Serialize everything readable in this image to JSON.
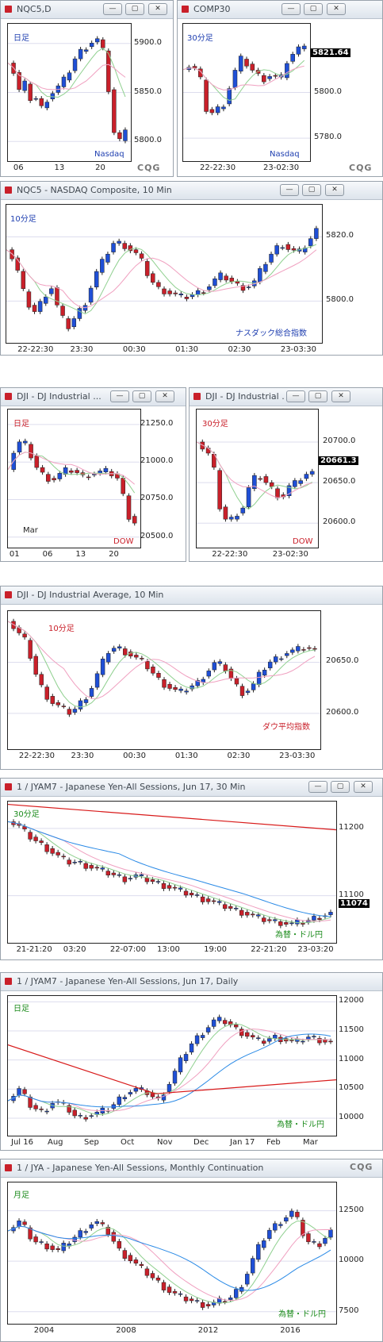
{
  "colors": {
    "up": "#1f4fd6",
    "down": "#c9202a",
    "grid": "#888888"
  },
  "panels": {
    "p1": {
      "title": "NQC5,D",
      "label": "日足",
      "sublabel": "Nasdaq",
      "yticks": [
        "5900.0",
        "5850.0",
        "5800.0"
      ],
      "xticks": [
        "06",
        "13",
        "20"
      ]
    },
    "p2": {
      "title": "COMP30",
      "label": "30分足",
      "sublabel": "Nasdaq",
      "last": "5821.64",
      "yticks": [
        "5800.0",
        "5780.0"
      ],
      "xticks": [
        "22-22:30",
        "23-02:30"
      ]
    },
    "p3": {
      "title": "NQC5 - NASDAQ Composite, 10 Min",
      "label": "10分足",
      "sublabel": "ナスダック総合指数",
      "yticks": [
        "5820.0",
        "5800.0"
      ],
      "xticks": [
        "22-22:30",
        "23:30",
        "00:30",
        "01:30",
        "02:30",
        "23-03:30"
      ]
    },
    "p4": {
      "title": "DJI - DJ Industrial ...",
      "label": "日足",
      "sublabel": "DOW",
      "extra": "Mar",
      "yticks": [
        "21250.0",
        "21000.0",
        "20750.0",
        "20500.0"
      ],
      "xticks": [
        "01",
        "06",
        "13",
        "20"
      ]
    },
    "p5": {
      "title": "DJI - DJ Industrial ...",
      "label": "30分足",
      "sublabel": "DOW",
      "last": "20661.3",
      "yticks": [
        "20700.0",
        "20650.0",
        "20600.0"
      ],
      "xticks": [
        "22-22:30",
        "23-02:30"
      ]
    },
    "p6": {
      "title": "DJI - DJ Industrial Average, 10 Min",
      "label": "10分足",
      "sublabel": "ダウ平均指数",
      "yticks": [
        "20650.0",
        "20600.0"
      ],
      "xticks": [
        "22-22:30",
        "23:30",
        "00:30",
        "01:30",
        "02:30",
        "23-03:30"
      ]
    },
    "p7": {
      "title": "1 / JYAM7 - Japanese Yen-All Sessions, Jun 17, 30 Min",
      "label": "30分足",
      "sublabel": "為替・ドル円",
      "last": "11074",
      "yticks": [
        "11200",
        "11100"
      ],
      "xticks": [
        "21-21:20",
        "03:20",
        "22-07:00",
        "13:00",
        "19:00",
        "22-21:20",
        "23-03:20"
      ]
    },
    "p8": {
      "title": "1 / JYAM7 - Japanese Yen-All Sessions, Jun 17, Daily",
      "label": "日足",
      "sublabel": "為替・ドル円",
      "yticks": [
        "12000",
        "11500",
        "11000",
        "10500",
        "10000"
      ],
      "xticks": [
        "Jul 16",
        "Aug",
        "Sep",
        "Oct",
        "Nov",
        "Dec",
        "Jan 17",
        "Feb",
        "Mar"
      ]
    },
    "p9": {
      "title": "1 / JYA - Japanese Yen-All Sessions, Monthly Continuation",
      "label": "月足",
      "sublabel": "為替・ドル円",
      "yticks": [
        "12500",
        "10000",
        "7500"
      ],
      "xticks": [
        "2004",
        "2008",
        "2012",
        "2016"
      ]
    }
  },
  "brand": "CQG",
  "chart_data": [
    {
      "type": "candlestick",
      "title": "NQC5,D",
      "y": [
        5780,
        5920
      ],
      "yticks": [
        5900,
        5850,
        5800
      ],
      "path": [
        5880,
        5870,
        5850,
        5860,
        5840,
        5845,
        5830,
        5850,
        5850,
        5860,
        5865,
        5880,
        5890,
        5895,
        5900,
        5905,
        5900,
        5860,
        5810,
        5800,
        5815
      ]
    },
    {
      "type": "candlestick",
      "title": "COMP30",
      "y": [
        5770,
        5830
      ],
      "yticks": [
        5800,
        5780
      ],
      "path": [
        5810,
        5812,
        5808,
        5790,
        5792,
        5795,
        5805,
        5815,
        5812,
        5808,
        5806,
        5808,
        5805,
        5815,
        5818,
        5821.64
      ]
    },
    {
      "type": "candlestick",
      "title": "NQC5 - NASDAQ Composite, 10 Min",
      "y": [
        5787,
        5830
      ],
      "yticks": [
        5820,
        5800
      ],
      "path": [
        5816,
        5812,
        5802,
        5796,
        5800,
        5805,
        5796,
        5792,
        5796,
        5800,
        5808,
        5813,
        5818,
        5818,
        5816,
        5814,
        5808,
        5804,
        5803,
        5802,
        5801,
        5802,
        5803,
        5805,
        5808,
        5807,
        5805,
        5804,
        5806,
        5811,
        5815,
        5818,
        5816,
        5815,
        5818,
        5822
      ]
    },
    {
      "type": "candlestick",
      "title": "DJI - DJ Industrial (daily)",
      "y": [
        20430,
        21350
      ],
      "yticks": [
        21250,
        21000,
        20750,
        20500
      ],
      "path": [
        20950,
        21100,
        21150,
        21050,
        20950,
        20900,
        20880,
        20920,
        20950,
        20940,
        20900,
        20920,
        20930,
        20940,
        20920,
        20880,
        20650,
        20600
      ]
    },
    {
      "type": "candlestick",
      "title": "DJI - DJ Industrial (30 min)",
      "y": [
        20570,
        20740
      ],
      "yticks": [
        20700,
        20650,
        20600
      ],
      "path": [
        20700,
        20690,
        20680,
        20620,
        20600,
        20610,
        20620,
        20650,
        20660,
        20650,
        20640,
        20630,
        20645,
        20650,
        20660,
        20661.3
      ]
    },
    {
      "type": "candlestick",
      "title": "DJI - DJ Industrial Average, 10 Min",
      "y": [
        20565,
        20700
      ],
      "yticks": [
        20650,
        20600
      ],
      "path": [
        20690,
        20680,
        20670,
        20640,
        20620,
        20610,
        20605,
        20600,
        20610,
        20620,
        20640,
        20660,
        20665,
        20660,
        20655,
        20650,
        20640,
        20630,
        20625,
        20620,
        20625,
        20630,
        20640,
        20650,
        20645,
        20630,
        20620,
        20625,
        20640,
        20650,
        20655,
        20660,
        20662,
        20665,
        20661
      ]
    },
    {
      "type": "candlestick",
      "title": "1 / JYAM7 30 Min",
      "y": [
        11030,
        11240
      ],
      "yticks": [
        11200,
        11100
      ],
      "path": [
        11210,
        11205,
        11190,
        11180,
        11170,
        11160,
        11150,
        11150,
        11145,
        11140,
        11135,
        11130,
        11125,
        11130,
        11125,
        11120,
        11115,
        11110,
        11105,
        11100,
        11095,
        11090,
        11085,
        11080,
        11075,
        11070,
        11065,
        11062,
        11060,
        11058,
        11060,
        11065,
        11070,
        11074
      ]
    },
    {
      "type": "candlestick",
      "title": "1 / JYAM7 Daily",
      "y": [
        9700,
        12100
      ],
      "yticks": [
        12000,
        11500,
        11000,
        10500,
        10000
      ],
      "path": [
        10300,
        10500,
        10200,
        10100,
        10300,
        10200,
        10000,
        10050,
        10100,
        10200,
        10400,
        10500,
        10450,
        10300,
        10600,
        11000,
        11300,
        11500,
        11700,
        11650,
        11500,
        11400,
        11300,
        11400,
        11350,
        11300,
        11400,
        11350,
        11300
      ]
    },
    {
      "type": "candlestick",
      "title": "1 / JYA Monthly",
      "y": [
        6900,
        13900
      ],
      "yticks": [
        12500,
        10000,
        7500
      ],
      "path": [
        11500,
        12000,
        11000,
        10800,
        10500,
        11000,
        11500,
        12000,
        11500,
        10500,
        10000,
        9500,
        9000,
        8500,
        8200,
        8000,
        7800,
        8000,
        8200,
        9000,
        10500,
        11500,
        12000,
        12500,
        11000,
        10800,
        11500
      ]
    }
  ]
}
